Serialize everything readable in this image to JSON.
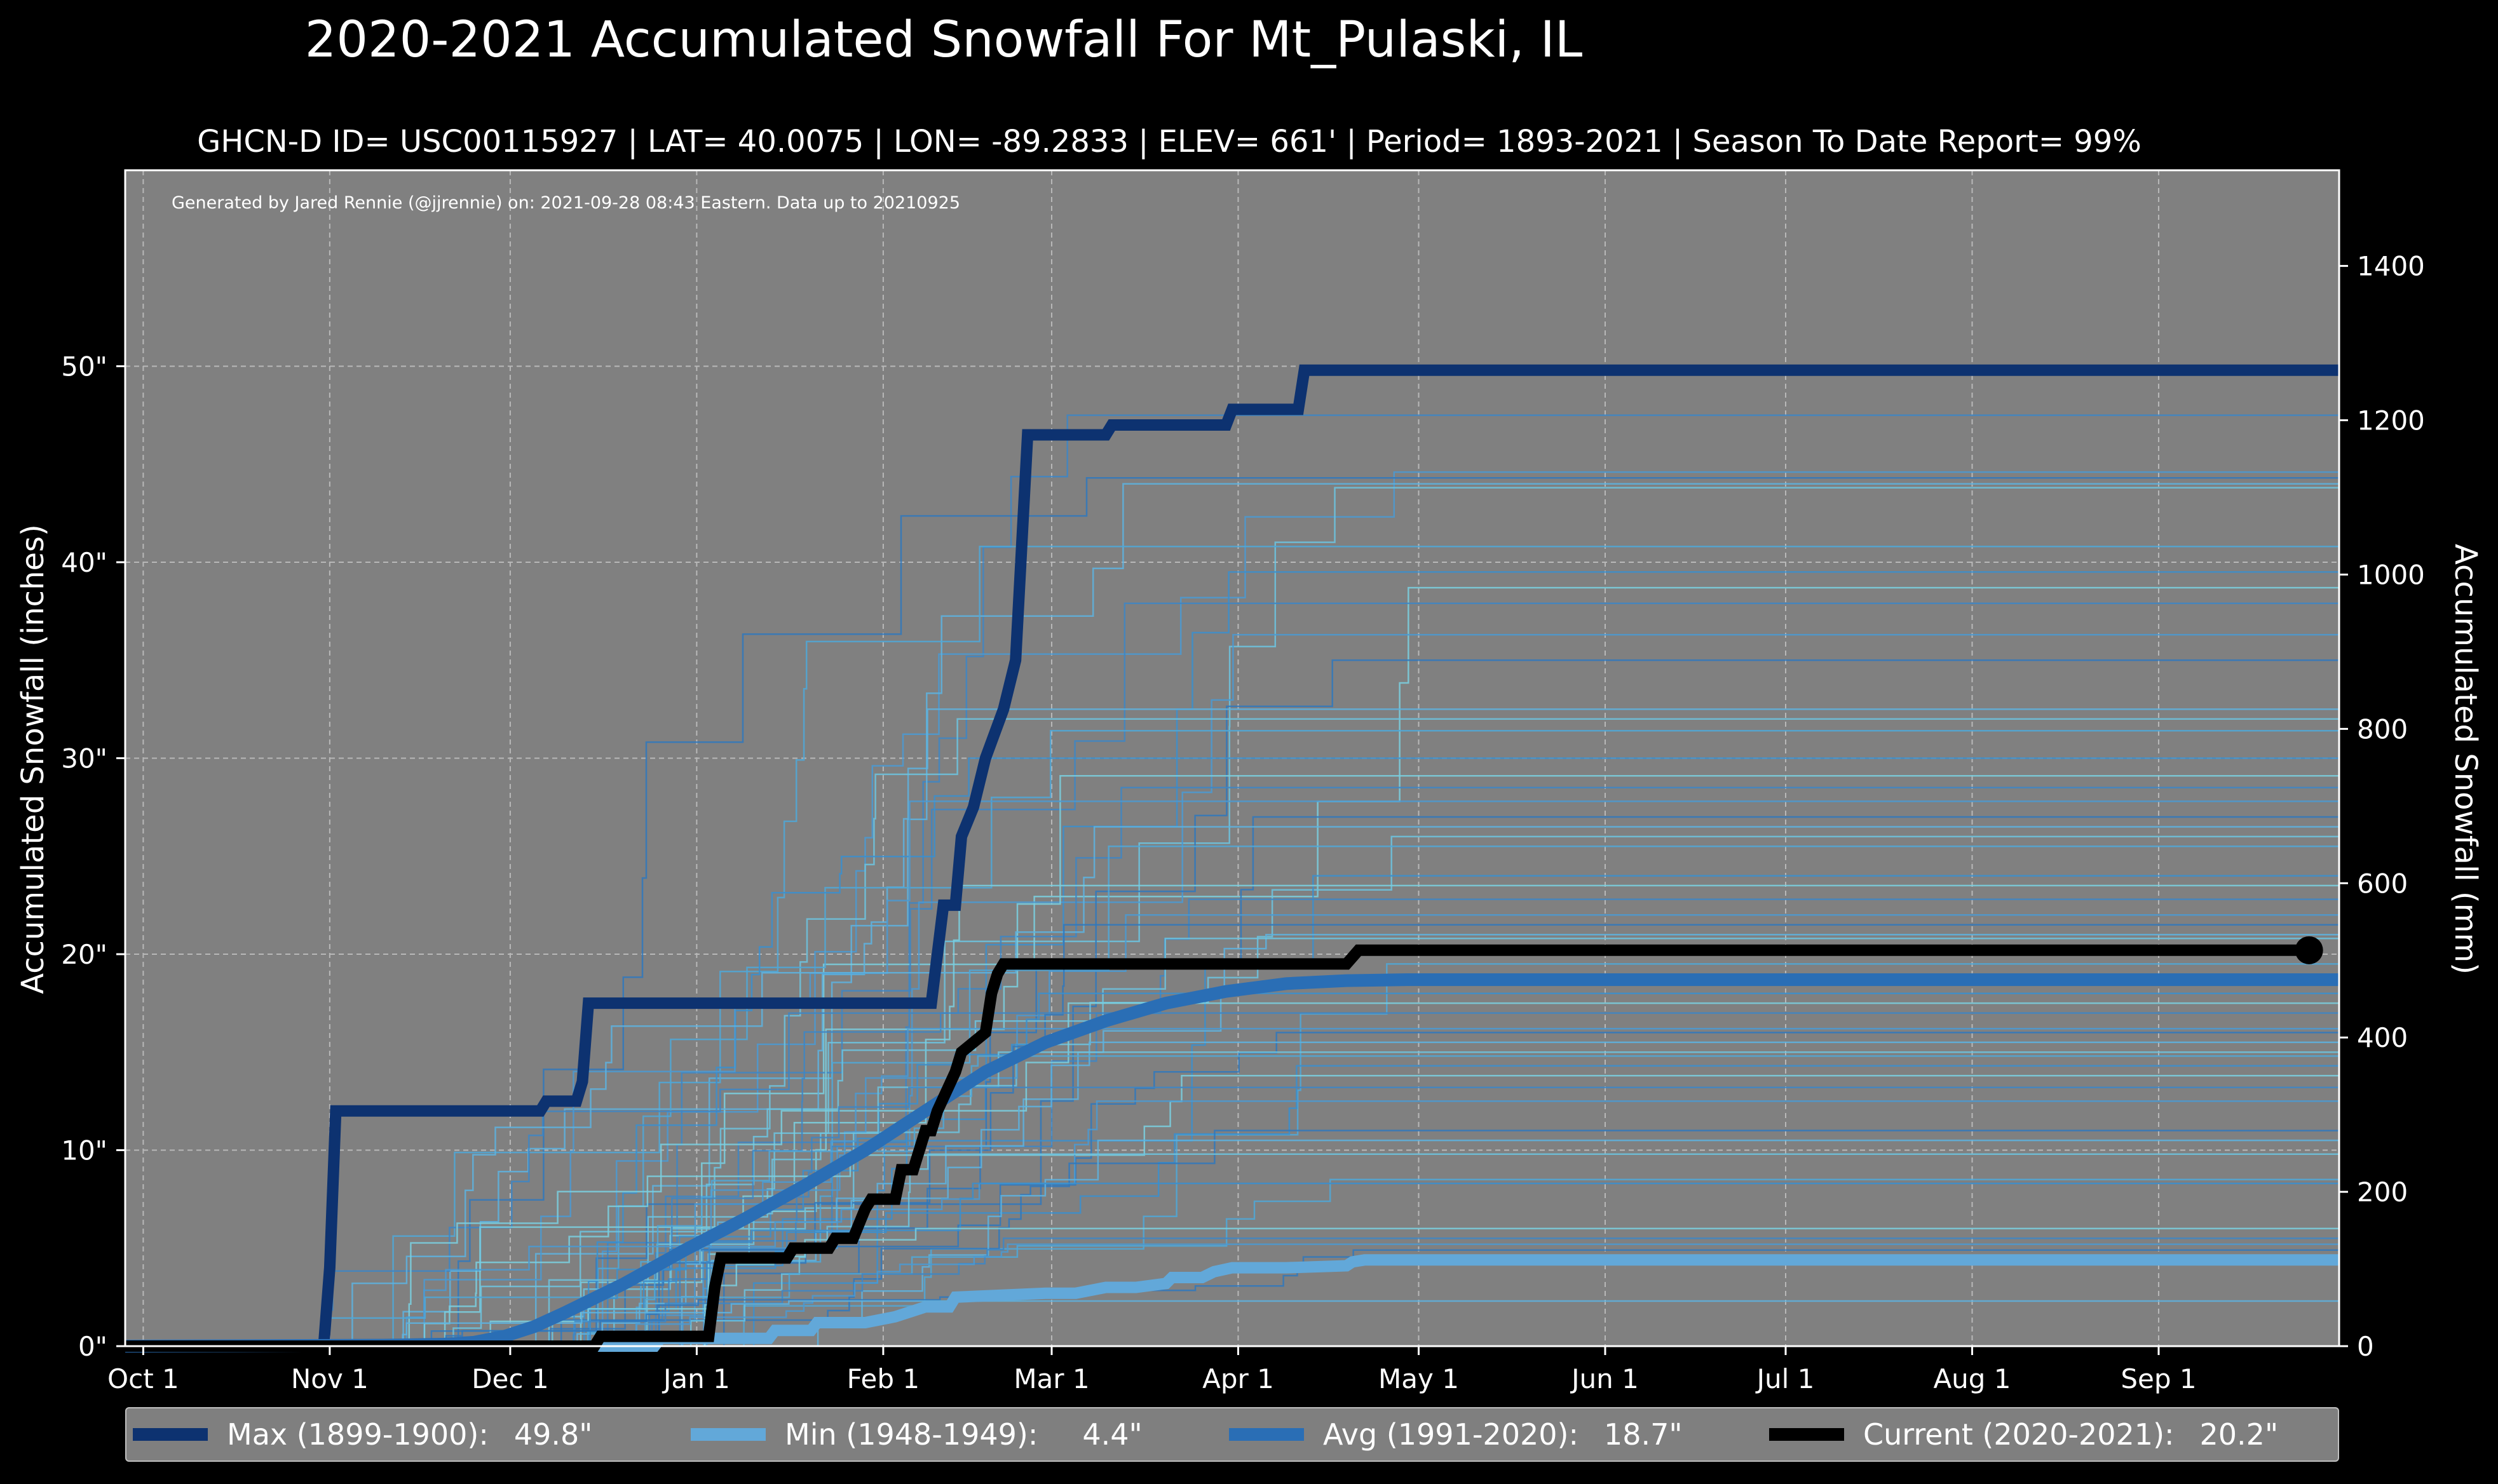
{
  "title": "2020-2021 Accumulated Snowfall For Mt_Pulaski, IL",
  "subtitle": "GHCN-D ID= USC00115927 | LAT= 40.0075 | LON= -89.2833 | ELEV= 661' | Period= 1893-2021 | Season To Date Report= 99%",
  "credit": "Generated by Jared Rennie (@jjrennie) on: 2021-09-28 08:43 Eastern. Data up to 20210925",
  "colors": {
    "background": "#000000",
    "plot_bg": "#808080",
    "max": "#0d3270",
    "min": "#62a8d9",
    "avg": "#2a6eb5",
    "current": "#000000"
  },
  "legend": [
    {
      "label": "Max (1899-1900):",
      "value": "49.8\"",
      "color": "#0d3270"
    },
    {
      "label": "Min (1948-1949):",
      "value": "4.4\"",
      "color": "#62a8d9"
    },
    {
      "label": "Avg (1991-2020):",
      "value": "18.7\"",
      "color": "#2a6eb5"
    },
    {
      "label": "Current (2020-2021):",
      "value": "20.2\"",
      "color": "#000000"
    }
  ],
  "chart_data": {
    "type": "line",
    "title": "2020-2021 Accumulated Snowfall For Mt_Pulaski, IL",
    "xlabel": "",
    "ylabel": "Accumulated Snowfall (inches)",
    "ylabel_right": "Accumulated Snowfall (mm)",
    "x_unit": "day of season (0 = Oct 1)",
    "xlim": [
      -3,
      365
    ],
    "ylim": [
      0,
      60
    ],
    "ylim_right_mm": [
      0,
      1524
    ],
    "x_ticks": [
      {
        "day": 0,
        "label": "Oct 1"
      },
      {
        "day": 31,
        "label": "Nov 1"
      },
      {
        "day": 61,
        "label": "Dec 1"
      },
      {
        "day": 92,
        "label": "Jan 1"
      },
      {
        "day": 123,
        "label": "Feb 1"
      },
      {
        "day": 151,
        "label": "Mar 1"
      },
      {
        "day": 182,
        "label": "Apr 1"
      },
      {
        "day": 212,
        "label": "May 1"
      },
      {
        "day": 243,
        "label": "Jun 1"
      },
      {
        "day": 273,
        "label": "Jul 1"
      },
      {
        "day": 304,
        "label": "Aug 1"
      },
      {
        "day": 335,
        "label": "Sep 1"
      }
    ],
    "y_ticks_left": [
      {
        "value": 0,
        "label": "0\""
      },
      {
        "value": 10,
        "label": "10\""
      },
      {
        "value": 20,
        "label": "20\""
      },
      {
        "value": 30,
        "label": "30\""
      },
      {
        "value": 40,
        "label": "40\""
      },
      {
        "value": 50,
        "label": "50\""
      }
    ],
    "y_ticks_right": [
      {
        "value_mm": 0,
        "label": "0"
      },
      {
        "value_mm": 200,
        "label": "200"
      },
      {
        "value_mm": 400,
        "label": "400"
      },
      {
        "value_mm": 600,
        "label": "600"
      },
      {
        "value_mm": 800,
        "label": "800"
      },
      {
        "value_mm": 1000,
        "label": "1000"
      },
      {
        "value_mm": 1200,
        "label": "1200"
      },
      {
        "value_mm": 1400,
        "label": "1400"
      }
    ],
    "grid": true,
    "legend_position": "bottom",
    "historical_final_totals": [
      47.5,
      44.6,
      44.3,
      44.0,
      43.8,
      40.8,
      39.5,
      38.7,
      37.9,
      36.3,
      35.0,
      32.5,
      32.0,
      31.4,
      30.0,
      29.1,
      28.5,
      27.8,
      27.0,
      26.5,
      26.0,
      25.5,
      24.0,
      23.5,
      22.8,
      22.0,
      21.5,
      21.0,
      20.8,
      19.5,
      18.0,
      17.5,
      17.0,
      16.2,
      16.0,
      15.5,
      15.0,
      14.8,
      14.3,
      13.8,
      13.2,
      12.5,
      11.0,
      10.5,
      9.8,
      8.5,
      8.3,
      6.0,
      5.5,
      5.2,
      4.9,
      2.3
    ],
    "series": [
      {
        "name": "Max (1899-1900)",
        "final": 49.8,
        "x": [
          -3,
          30,
          31,
          32,
          66,
          67,
          72,
          73,
          74,
          92,
          123,
          131,
          132,
          133,
          135,
          136,
          138,
          140,
          143,
          145,
          147,
          149,
          150,
          152,
          154,
          159,
          160,
          161,
          170,
          171,
          180,
          181,
          185,
          186,
          192,
          193,
          365
        ],
        "y": [
          0,
          0,
          4,
          12,
          12,
          12.5,
          12.5,
          13.5,
          17.5,
          17.5,
          17.5,
          17.5,
          20,
          22.5,
          22.5,
          26,
          27.5,
          30,
          32.5,
          35,
          46.5,
          46.5,
          46.5,
          46.5,
          46.5,
          46.5,
          46.5,
          47,
          47,
          47,
          47,
          47.8,
          47.8,
          47.8,
          47.8,
          49.8,
          49.8
        ]
      },
      {
        "name": "Min (1948-1949)",
        "final": 4.4,
        "x": [
          -3,
          85,
          86,
          104,
          105,
          111,
          112,
          120,
          125,
          130,
          134,
          135,
          150,
          155,
          160,
          165,
          170,
          171,
          176,
          178,
          181,
          190,
          200,
          201,
          203,
          365
        ],
        "y": [
          0,
          0,
          0.4,
          0.4,
          0.8,
          0.8,
          1.2,
          1.2,
          1.5,
          2.0,
          2.0,
          2.5,
          2.7,
          2.7,
          3.0,
          3.0,
          3.2,
          3.5,
          3.5,
          3.8,
          4.0,
          4.0,
          4.1,
          4.3,
          4.4,
          4.4
        ]
      },
      {
        "name": "Avg (1991-2020)",
        "final": 18.7,
        "x": [
          -3,
          40,
          50,
          55,
          60,
          65,
          70,
          80,
          90,
          100,
          110,
          120,
          130,
          140,
          150,
          160,
          170,
          180,
          190,
          200,
          210,
          365
        ],
        "y": [
          0,
          0.05,
          0.1,
          0.2,
          0.5,
          1.0,
          1.7,
          3.2,
          4.9,
          6.5,
          8.2,
          10.0,
          12.0,
          14.0,
          15.5,
          16.6,
          17.5,
          18.1,
          18.5,
          18.65,
          18.7,
          18.7
        ]
      },
      {
        "name": "Current (2020-2021)",
        "final": 20.2,
        "x": [
          -3,
          75,
          76,
          94,
          95,
          96,
          107,
          108,
          114,
          115,
          118,
          120,
          121,
          125,
          126,
          127,
          128,
          130,
          131,
          132,
          135,
          136,
          140,
          141,
          142,
          143,
          144,
          145,
          146,
          148,
          151,
          180,
          200,
          202,
          205,
          360
        ],
        "y": [
          0,
          0,
          0.5,
          0.5,
          3,
          4.5,
          4.5,
          5,
          5,
          5.5,
          5.5,
          7,
          7.5,
          7.5,
          9,
          9,
          9,
          11,
          11,
          12,
          14,
          15,
          16,
          18,
          19,
          19.5,
          19.5,
          19.5,
          19.5,
          19.5,
          19.5,
          19.5,
          19.5,
          20.2,
          20.2,
          20.2
        ]
      }
    ]
  }
}
